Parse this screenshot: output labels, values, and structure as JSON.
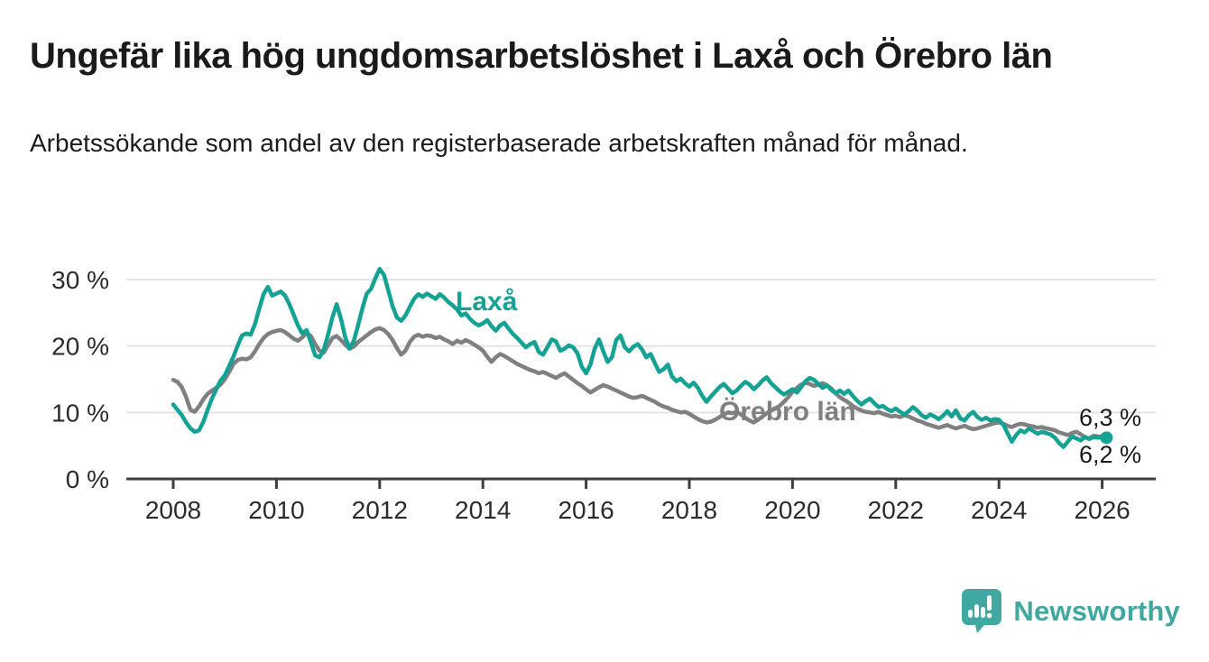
{
  "title": "Ungefär lika hög ungdomsarbetslöshet i Laxå och Örebro län",
  "subtitle": "Arbetssökande som andel av den registerbaserade arbetskraften månad för månad.",
  "branding": {
    "name": "Newsworthy"
  },
  "colors": {
    "laxa": "#14a294",
    "orebro": "#808080",
    "logo_teal": "#3ea8a1",
    "axis": "#3d3d3d",
    "grid": "#e3e3e3",
    "text": "#2b2b2b",
    "annotation_dark": "#1a1a1a"
  },
  "series_labels": {
    "laxa": "Laxå",
    "orebro": "Örebro län"
  },
  "end_labels": {
    "top": "6,3 %",
    "bottom": "6,2 %"
  },
  "chart_data": {
    "type": "line",
    "title": "Ungefär lika hög ungdomsarbetslöshet i Laxå och Örebro län",
    "subtitle": "Arbetssökande som andel av den registerbaserade arbetskraften månad för månad.",
    "xlabel": "",
    "ylabel": "",
    "x_start_year": 2008,
    "x_step": "month",
    "xlim": [
      2007.1,
      2027.1
    ],
    "ylim": [
      0,
      33
    ],
    "yticks": [
      0,
      10,
      20,
      30
    ],
    "ytick_labels": [
      "0 %",
      "10 %",
      "20 %",
      "30 %"
    ],
    "xticks": [
      2008,
      2010,
      2012,
      2014,
      2016,
      2018,
      2020,
      2022,
      2024,
      2026
    ],
    "grid": "horizontal",
    "legend_position": "inline-labels",
    "end_value_labels": {
      "orebro_lan": "6,3 %",
      "laxa": "6,2 %"
    },
    "series": [
      {
        "name": "Laxå",
        "color": "#14a294",
        "end_dot": true,
        "last_value": 6.2,
        "values": [
          11.2,
          10.4,
          9.6,
          8.5,
          7.6,
          7.1,
          7.3,
          8.6,
          10.4,
          12.1,
          13.5,
          14.8,
          15.6,
          17.0,
          18.4,
          20.1,
          21.6,
          21.9,
          21.7,
          23.3,
          25.6,
          27.8,
          28.9,
          27.6,
          27.9,
          28.2,
          27.6,
          26.3,
          24.7,
          23.1,
          21.9,
          22.4,
          20.6,
          18.6,
          18.3,
          19.4,
          21.7,
          24.3,
          26.3,
          24.1,
          21.3,
          19.6,
          20.8,
          23.2,
          25.7,
          27.9,
          28.6,
          30.2,
          31.6,
          30.7,
          28.4,
          26.0,
          24.3,
          23.8,
          24.6,
          25.9,
          27.1,
          27.8,
          27.4,
          27.9,
          27.5,
          27.1,
          27.8,
          27.3,
          26.6,
          26.1,
          25.5,
          24.6,
          24.9,
          24.1,
          23.5,
          23.1,
          23.4,
          23.9,
          23.0,
          22.3,
          23.1,
          23.5,
          22.6,
          21.8,
          21.2,
          20.5,
          19.8,
          20.3,
          20.6,
          19.1,
          18.7,
          19.8,
          21.0,
          20.7,
          19.3,
          19.6,
          20.1,
          19.8,
          18.9,
          16.9,
          15.9,
          17.2,
          19.6,
          21.0,
          19.2,
          17.6,
          18.3,
          20.9,
          21.6,
          19.8,
          19.2,
          19.9,
          20.3,
          19.5,
          18.3,
          18.8,
          17.4,
          16.1,
          16.5,
          17.2,
          15.4,
          14.7,
          15.1,
          14.4,
          13.9,
          14.5,
          13.7,
          12.5,
          11.6,
          12.4,
          13.1,
          13.8,
          14.3,
          13.6,
          12.9,
          13.3,
          14.0,
          14.6,
          14.2,
          13.5,
          14.1,
          14.8,
          15.3,
          14.4,
          13.8,
          13.2,
          12.7,
          13.1,
          13.5,
          13.0,
          13.8,
          14.7,
          15.2,
          14.9,
          14.3,
          13.7,
          14.1,
          13.4,
          12.9,
          13.3,
          12.8,
          13.3,
          12.5,
          11.8,
          11.2,
          11.7,
          12.1,
          11.4,
          10.8,
          11.0,
          10.5,
          10.2,
          10.6,
          10.1,
          9.7,
          10.2,
          10.8,
          10.3,
          9.6,
          9.2,
          9.7,
          9.4,
          9.0,
          9.5,
          10.2,
          9.4,
          10.3,
          9.1,
          8.8,
          9.6,
          10.1,
          9.3,
          8.9,
          9.2,
          8.8,
          9.0,
          8.9,
          8.2,
          6.9,
          5.6,
          6.6,
          7.3,
          7.0,
          7.6,
          7.2,
          6.8,
          7.1,
          6.9,
          6.7,
          6.2,
          5.4,
          4.8,
          5.6,
          6.4,
          6.1,
          5.8,
          6.3,
          6.0,
          6.3,
          6.2,
          6.3,
          6.2
        ]
      },
      {
        "name": "Örebro län",
        "color": "#808080",
        "end_dot": false,
        "last_value": 6.3,
        "values": [
          14.9,
          14.6,
          13.8,
          12.3,
          10.4,
          10.1,
          10.9,
          12.0,
          12.8,
          13.3,
          13.7,
          14.2,
          15.0,
          16.1,
          17.3,
          17.9,
          18.1,
          18.0,
          18.3,
          19.2,
          20.3,
          21.2,
          21.8,
          22.1,
          22.3,
          22.4,
          22.1,
          21.6,
          21.1,
          20.8,
          21.3,
          22.0,
          21.5,
          20.3,
          19.3,
          19.0,
          20.1,
          21.2,
          21.5,
          20.9,
          20.2,
          19.6,
          19.9,
          20.6,
          21.1,
          21.6,
          22.1,
          22.5,
          22.7,
          22.4,
          21.8,
          20.9,
          19.7,
          18.7,
          19.3,
          20.6,
          21.4,
          21.7,
          21.4,
          21.6,
          21.5,
          21.2,
          21.4,
          21.0,
          20.7,
          20.3,
          20.8,
          20.5,
          20.9,
          20.6,
          20.2,
          19.8,
          19.3,
          18.4,
          17.6,
          18.3,
          18.8,
          18.5,
          18.1,
          17.7,
          17.3,
          17.0,
          16.7,
          16.4,
          16.2,
          15.9,
          16.1,
          15.8,
          15.5,
          15.2,
          15.6,
          15.9,
          15.4,
          14.9,
          14.4,
          14.0,
          13.5,
          13.0,
          13.4,
          13.8,
          14.1,
          13.9,
          13.6,
          13.3,
          13.0,
          12.7,
          12.4,
          12.2,
          12.3,
          12.5,
          12.2,
          11.9,
          11.6,
          11.2,
          10.9,
          10.7,
          10.4,
          10.2,
          10.0,
          10.1,
          9.8,
          9.4,
          9.0,
          8.7,
          8.5,
          8.6,
          8.9,
          9.3,
          9.7,
          10.0,
          9.9,
          10.1,
          9.7,
          9.2,
          8.8,
          8.5,
          8.9,
          9.4,
          9.9,
          10.3,
          10.6,
          11.0,
          11.6,
          12.3,
          13.1,
          13.7,
          14.2,
          14.5,
          14.3,
          14.0,
          14.2,
          14.4,
          14.1,
          13.6,
          12.9,
          12.3,
          11.9,
          11.5,
          11.0,
          10.6,
          10.3,
          10.1,
          10.0,
          9.9,
          10.1,
          9.8,
          9.6,
          9.4,
          9.5,
          9.3,
          9.6,
          9.4,
          9.1,
          8.8,
          8.6,
          8.3,
          8.1,
          7.9,
          7.7,
          7.9,
          8.1,
          7.8,
          7.6,
          7.8,
          8.0,
          7.7,
          7.5,
          7.6,
          7.8,
          8.0,
          8.2,
          8.4,
          8.5,
          8.3,
          8.0,
          7.8,
          8.1,
          8.3,
          8.2,
          8.0,
          7.9,
          7.7,
          7.8,
          7.6,
          7.5,
          7.3,
          7.0,
          6.8,
          6.6,
          6.9,
          7.1,
          6.7,
          6.3,
          6.1,
          6.5,
          6.4,
          6.4,
          6.3
        ]
      }
    ]
  }
}
